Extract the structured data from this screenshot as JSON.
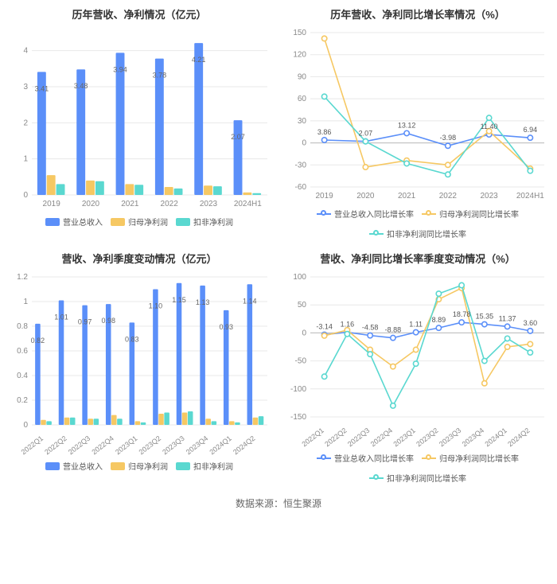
{
  "footer": "数据来源：恒生聚源",
  "colors": {
    "blue": "#5b8ff9",
    "yellow": "#f6c863",
    "teal": "#5ad8d0",
    "grid": "#e8e8e8",
    "axis": "#cccccc",
    "text": "#888888"
  },
  "panels": {
    "tl": {
      "title": "历年营收、净利情况（亿元）",
      "type": "bar",
      "categories": [
        "2019",
        "2020",
        "2021",
        "2022",
        "2023",
        "2024H1"
      ],
      "ylim": [
        0,
        4.5
      ],
      "ytick_step": 1,
      "series": [
        {
          "name": "营业总收入",
          "color": "#5b8ff9",
          "values": [
            3.41,
            3.48,
            3.94,
            3.78,
            4.21,
            2.07
          ],
          "labels": [
            "3.41",
            "3.48",
            "3.94",
            "3.78",
            "4.21",
            "2.07"
          ]
        },
        {
          "name": "归母净利润",
          "color": "#f6c863",
          "values": [
            0.55,
            0.4,
            0.3,
            0.22,
            0.26,
            0.07
          ]
        },
        {
          "name": "扣非净利润",
          "color": "#5ad8d0",
          "values": [
            0.3,
            0.38,
            0.28,
            0.18,
            0.24,
            0.05
          ]
        }
      ]
    },
    "tr": {
      "title": "历年营收、净利同比增长率情况（%）",
      "type": "line",
      "categories": [
        "2019",
        "2020",
        "2021",
        "2022",
        "2023",
        "2024H1"
      ],
      "ylim": [
        -60,
        150
      ],
      "ytick_step": 30,
      "series": [
        {
          "name": "营业总收入同比增长率",
          "color": "#5b8ff9",
          "values": [
            3.86,
            2.07,
            13.12,
            -3.98,
            11.4,
            6.94
          ],
          "labels": [
            "3.86",
            "2.07",
            "13.12",
            "-3.98",
            "11.40",
            "6.94"
          ]
        },
        {
          "name": "归母净利润同比增长率",
          "color": "#f6c863",
          "values": [
            142,
            -33,
            -24,
            -30,
            16,
            -35
          ]
        },
        {
          "name": "扣非净利润同比增长率",
          "color": "#5ad8d0",
          "values": [
            63,
            2,
            -28,
            -43,
            34,
            -38
          ]
        }
      ]
    },
    "bl": {
      "title": "营收、净利季度变动情况（亿元）",
      "type": "bar",
      "categories": [
        "2022Q1",
        "2022Q2",
        "2022Q3",
        "2022Q4",
        "2023Q1",
        "2023Q2",
        "2023Q3",
        "2023Q4",
        "2024Q1",
        "2024Q2"
      ],
      "ylim": [
        0,
        1.2
      ],
      "ytick_step": 0.2,
      "rotate_x": true,
      "series": [
        {
          "name": "营业总收入",
          "color": "#5b8ff9",
          "values": [
            0.82,
            1.01,
            0.97,
            0.98,
            0.83,
            1.1,
            1.15,
            1.13,
            0.93,
            1.14
          ],
          "labels": [
            "0.82",
            "1.01",
            "0.97",
            "0.98",
            "0.83",
            "1.10",
            "1.15",
            "1.13",
            "0.93",
            "1.14"
          ]
        },
        {
          "name": "归母净利润",
          "color": "#f6c863",
          "values": [
            0.04,
            0.06,
            0.05,
            0.08,
            0.03,
            0.09,
            0.1,
            0.05,
            0.03,
            0.06
          ]
        },
        {
          "name": "扣非净利润",
          "color": "#5ad8d0",
          "values": [
            0.03,
            0.06,
            0.05,
            0.05,
            0.02,
            0.1,
            0.11,
            0.03,
            0.02,
            0.07
          ]
        }
      ]
    },
    "br": {
      "title": "营收、净利同比增长率季度变动情况（%）",
      "type": "line",
      "categories": [
        "2022Q1",
        "2022Q2",
        "2022Q3",
        "2022Q4",
        "2023Q1",
        "2023Q2",
        "2023Q3",
        "2023Q4",
        "2024Q1",
        "2024Q2"
      ],
      "ylim": [
        -150,
        100
      ],
      "ytick_step": 50,
      "rotate_x": true,
      "series": [
        {
          "name": "营业总收入同比增长率",
          "color": "#5b8ff9",
          "values": [
            -3.14,
            1.16,
            -4.58,
            -8.88,
            1.11,
            8.89,
            18.78,
            15.35,
            11.37,
            3.6
          ],
          "labels": [
            "-3.14",
            "1.16",
            "-4.58",
            "-8.88",
            "1.11",
            "8.89",
            "18.78",
            "15.35",
            "11.37",
            "3.60"
          ]
        },
        {
          "name": "归母净利润同比增长率",
          "color": "#f6c863",
          "values": [
            -5,
            5,
            -30,
            -60,
            -30,
            60,
            80,
            -90,
            -25,
            -20
          ]
        },
        {
          "name": "扣非净利润同比增长率",
          "color": "#5ad8d0",
          "values": [
            -78,
            -2,
            -38,
            -130,
            -55,
            70,
            85,
            -50,
            -10,
            -35
          ]
        }
      ]
    }
  }
}
